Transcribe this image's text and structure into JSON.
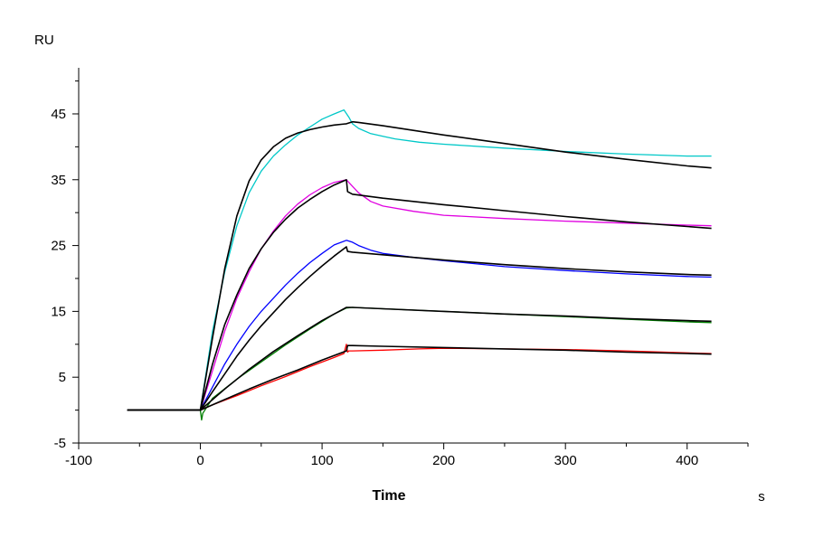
{
  "chart_data": {
    "type": "line",
    "title": "",
    "xlabel": "Time",
    "ylabel": "",
    "y_unit": "RU",
    "x_unit": "s",
    "xlim": [
      -100,
      450
    ],
    "ylim": [
      -5,
      52
    ],
    "x_ticks": [
      -100,
      0,
      100,
      200,
      300,
      400
    ],
    "y_ticks": [
      -5,
      5,
      15,
      25,
      35,
      45
    ],
    "x_tick_labels": [
      "-100",
      "0",
      "100",
      "200",
      "300",
      "400"
    ],
    "y_tick_labels": [
      "-5",
      "5",
      "15",
      "25",
      "35",
      "45"
    ],
    "grid": false,
    "legend": "none",
    "series": [
      {
        "color": "#00c8c8",
        "kind": "measured",
        "x": [
          -60,
          -30,
          0,
          5,
          10,
          20,
          30,
          40,
          50,
          60,
          70,
          80,
          90,
          100,
          110,
          118,
          122,
          125,
          130,
          140,
          150,
          160,
          180,
          200,
          250,
          300,
          350,
          400,
          420
        ],
        "y": [
          0,
          0,
          0,
          6,
          12,
          21,
          28,
          33,
          36.3,
          38.6,
          40.3,
          41.8,
          43,
          44.2,
          45,
          45.6,
          44.5,
          43.5,
          42.8,
          42,
          41.6,
          41.2,
          40.7,
          40.4,
          39.8,
          39.3,
          38.9,
          38.6,
          38.6
        ]
      },
      {
        "color": "#e000e0",
        "kind": "measured",
        "x": [
          -60,
          -30,
          0,
          10,
          20,
          30,
          40,
          50,
          60,
          70,
          80,
          90,
          100,
          110,
          120,
          125,
          130,
          140,
          150,
          175,
          200,
          250,
          300,
          350,
          400,
          420
        ],
        "y": [
          0,
          0,
          0,
          6,
          12,
          17,
          21,
          24.5,
          27.2,
          29.5,
          31.3,
          32.7,
          33.8,
          34.6,
          35,
          34,
          33,
          31.7,
          31,
          30.2,
          29.6,
          29.1,
          28.7,
          28.4,
          28.1,
          28
        ]
      },
      {
        "color": "#0000ff",
        "kind": "measured",
        "x": [
          -60,
          -30,
          0,
          10,
          20,
          30,
          40,
          50,
          60,
          70,
          80,
          90,
          100,
          110,
          120,
          125,
          130,
          140,
          150,
          175,
          200,
          250,
          300,
          350,
          400,
          420
        ],
        "y": [
          0,
          0,
          0,
          3.5,
          7,
          10,
          12.7,
          15,
          17,
          19,
          20.8,
          22.4,
          23.8,
          25.1,
          25.8,
          25.5,
          25,
          24.3,
          23.8,
          23.2,
          22.7,
          21.8,
          21.2,
          20.7,
          20.3,
          20.2
        ]
      },
      {
        "color": "#008000",
        "kind": "measured",
        "x": [
          -60,
          -30,
          0,
          1,
          2,
          10,
          30,
          50,
          70,
          90,
          110,
          120,
          125,
          150,
          200,
          250,
          300,
          350,
          400,
          420
        ],
        "y": [
          0,
          0,
          0,
          -1.5,
          -0.5,
          1.8,
          4.7,
          7.3,
          9.9,
          12.3,
          14.6,
          15.5,
          15.6,
          15.4,
          15,
          14.6,
          14.2,
          13.8,
          13.4,
          13.3
        ]
      },
      {
        "color": "#ff0000",
        "kind": "measured",
        "x": [
          -60,
          -30,
          0,
          10,
          30,
          50,
          70,
          90,
          110,
          118,
          120,
          121,
          122,
          125,
          150,
          180,
          200,
          250,
          300,
          350,
          400,
          420
        ],
        "y": [
          0,
          0,
          0,
          0.8,
          2.2,
          3.7,
          5.1,
          6.6,
          8,
          8.6,
          10,
          8.8,
          9,
          9,
          9.1,
          9.3,
          9.4,
          9.3,
          9.2,
          9,
          8.7,
          8.6
        ]
      },
      {
        "color": "#000000",
        "kind": "fit",
        "x": [
          -60,
          0,
          10,
          20,
          30,
          40,
          50,
          60,
          70,
          80,
          90,
          100,
          110,
          120,
          125,
          130,
          150,
          200,
          250,
          300,
          350,
          400,
          420
        ],
        "y": [
          0,
          0,
          11,
          21.5,
          29.5,
          34.8,
          38,
          40,
          41.3,
          42.1,
          42.6,
          43,
          43.3,
          43.5,
          43.8,
          43.7,
          43.2,
          41.8,
          40.5,
          39.2,
          38.1,
          37.1,
          36.8
        ]
      },
      {
        "color": "#000000",
        "kind": "fit",
        "x": [
          -60,
          0,
          10,
          20,
          30,
          40,
          50,
          60,
          70,
          80,
          90,
          100,
          110,
          120,
          121,
          125,
          150,
          200,
          250,
          300,
          350,
          400,
          420
        ],
        "y": [
          0,
          0,
          7,
          13,
          17.5,
          21.5,
          24.5,
          27,
          29,
          30.7,
          32,
          33.2,
          34.2,
          35,
          33.2,
          32.8,
          32.2,
          31.2,
          30.3,
          29.4,
          28.6,
          27.9,
          27.6
        ]
      },
      {
        "color": "#000000",
        "kind": "fit",
        "x": [
          -60,
          0,
          10,
          20,
          30,
          40,
          50,
          60,
          70,
          80,
          90,
          100,
          110,
          120,
          121,
          125,
          150,
          200,
          250,
          300,
          350,
          400,
          420
        ],
        "y": [
          0,
          0,
          2.8,
          5.5,
          8.2,
          10.6,
          12.8,
          14.8,
          16.8,
          18.6,
          20.3,
          21.9,
          23.4,
          24.8,
          24.1,
          24,
          23.6,
          22.8,
          22.1,
          21.5,
          21,
          20.6,
          20.5
        ]
      },
      {
        "color": "#000000",
        "kind": "fit",
        "x": [
          -60,
          0,
          20,
          40,
          60,
          80,
          100,
          120,
          125,
          150,
          200,
          250,
          300,
          350,
          400,
          420
        ],
        "y": [
          0,
          0,
          3.2,
          6.2,
          8.9,
          11.3,
          13.6,
          15.6,
          15.6,
          15.4,
          15,
          14.6,
          14.3,
          13.9,
          13.6,
          13.5
        ]
      },
      {
        "color": "#000000",
        "kind": "fit",
        "x": [
          -60,
          0,
          20,
          40,
          60,
          80,
          100,
          120,
          121,
          125,
          150,
          200,
          250,
          300,
          350,
          400,
          420
        ],
        "y": [
          0,
          0,
          1.6,
          3.2,
          4.7,
          6.1,
          7.6,
          9,
          9.8,
          9.8,
          9.7,
          9.5,
          9.3,
          9.1,
          8.8,
          8.6,
          8.5
        ]
      }
    ]
  }
}
